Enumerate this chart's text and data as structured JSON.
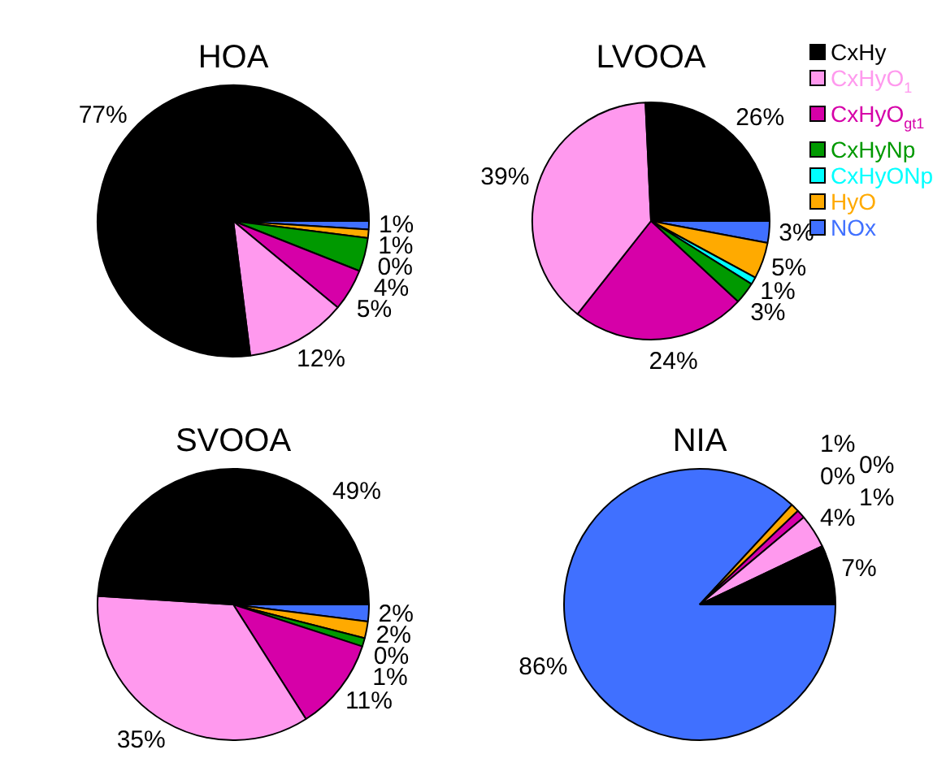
{
  "chart_data": [
    {
      "type": "pie",
      "title": "HOA",
      "categories": [
        null,
        null,
        null,
        null,
        null,
        null,
        null
      ],
      "values": [
        77,
        12,
        5,
        4,
        0,
        1,
        1
      ],
      "value_labels": [
        "77%",
        "12%",
        "5%",
        "4%",
        "0%",
        "1%",
        "1%"
      ],
      "colors": [
        "#000000",
        "#ff99ee",
        "#d600a8",
        "#009900",
        "#00ffff",
        "#ffaa00",
        "#4070ff"
      ],
      "legend": false
    },
    {
      "type": "pie",
      "title": "LVOOA",
      "categories": [
        "CxHy",
        "CxHyO$_{1}$",
        "CxHyO$_{gt1}$",
        "CxHyNp",
        "CxHyONp",
        "HyO",
        "NOx"
      ],
      "values": [
        26,
        39,
        24,
        3,
        1,
        5,
        3
      ],
      "value_labels": [
        "26%",
        "39%",
        "24%",
        "3%",
        "1%",
        "5%",
        "3%"
      ],
      "colors": [
        "#000000",
        "#ff99ee",
        "#d600a8",
        "#009900",
        "#00ffff",
        "#ffaa00",
        "#4070ff"
      ],
      "legend": "right"
    },
    {
      "type": "pie",
      "title": "SVOOA",
      "categories": [
        null,
        null,
        null,
        null,
        null,
        null,
        null
      ],
      "values": [
        49,
        35,
        11,
        1,
        0,
        2,
        2
      ],
      "value_labels": [
        "49%",
        "35%",
        "11%",
        "1%",
        "0%",
        "2%",
        "2%"
      ],
      "colors": [
        "#000000",
        "#ff99ee",
        "#d600a8",
        "#009900",
        "#00ffff",
        "#ffaa00",
        "#4070ff"
      ],
      "legend": false
    },
    {
      "type": "pie",
      "title": "NIA",
      "categories": [
        null,
        null,
        null,
        null,
        null,
        null,
        null
      ],
      "values": [
        7,
        4,
        1,
        0,
        0,
        1,
        86
      ],
      "value_labels": [
        "7%",
        "4%",
        "1%",
        "0%",
        "0%",
        "1%",
        "86%"
      ],
      "colors": [
        "#000000",
        "#ff99ee",
        "#d600a8",
        "#009900",
        "#00ffff",
        "#ffaa00",
        "#4070ff"
      ],
      "legend": false
    }
  ]
}
